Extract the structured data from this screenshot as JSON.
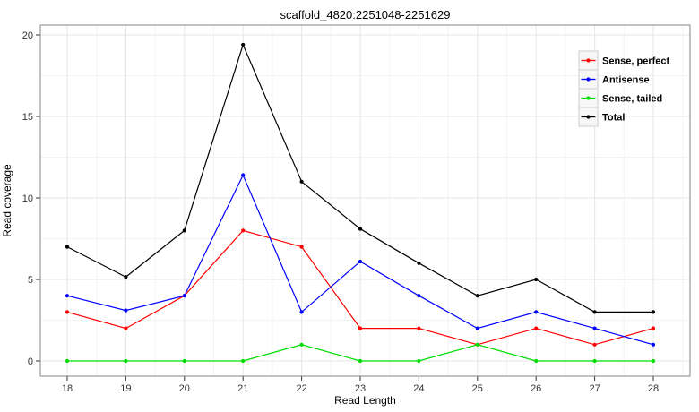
{
  "title": "scaffold_4820:2251048-2251629",
  "chart_data": {
    "type": "line",
    "title": "scaffold_4820:2251048-2251629",
    "xlabel": "Read Length",
    "ylabel": "Read coverage",
    "x": [
      18,
      19,
      20,
      21,
      22,
      23,
      24,
      25,
      26,
      27,
      28
    ],
    "xticks": [
      18,
      19,
      20,
      21,
      22,
      23,
      24,
      25,
      26,
      27,
      28
    ],
    "yticks": [
      0,
      5,
      10,
      15,
      20
    ],
    "ylim": [
      0,
      20
    ],
    "grid": "major+minor",
    "legend_position": "top-right-inside",
    "series": [
      {
        "name": "Sense, perfect",
        "color": "#ff0000",
        "values": [
          3,
          2,
          4,
          8,
          7,
          2,
          2,
          1,
          2,
          1,
          2
        ]
      },
      {
        "name": "Antisense",
        "color": "#0000ff",
        "values": [
          4,
          3.1,
          4,
          11.4,
          3,
          6.1,
          4,
          2,
          3,
          2,
          1
        ]
      },
      {
        "name": "Sense, tailed",
        "color": "#00dd00",
        "values": [
          0,
          0,
          0,
          0,
          1,
          0,
          0,
          1,
          0,
          0,
          0
        ]
      },
      {
        "name": "Total",
        "color": "#000000",
        "values": [
          7,
          5.15,
          8,
          19.4,
          11,
          8.1,
          6,
          4,
          5,
          3,
          3
        ]
      }
    ]
  },
  "style": {
    "panel_border": "#848484",
    "grid_major": "#e6e6e6",
    "grid_minor": "#f3f3f3",
    "tick_color": "#333333",
    "tick_label_color": "#333333",
    "axis_title_color": "#000000",
    "legend_key_fill": "#f7f7f7",
    "legend_key_border": "#cdcdcd"
  }
}
